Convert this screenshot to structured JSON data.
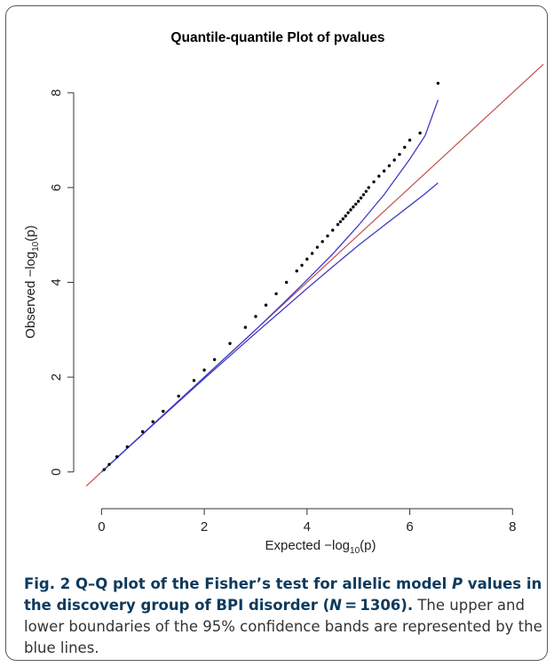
{
  "chart_data": {
    "type": "scatter",
    "title": "Quantile-quantile Plot of pvalues",
    "xlabel": "Expected  −log",
    "xlabel_sub": "10",
    "xlabel_tail": "(p)",
    "ylabel": "Observed  −log",
    "ylabel_sub": "10",
    "ylabel_tail": "(p)",
    "xlim": [
      -0.3,
      8.6
    ],
    "ylim": [
      -0.4,
      8.7
    ],
    "xticks": [
      0,
      2,
      4,
      6,
      8
    ],
    "yticks": [
      0,
      2,
      4,
      6,
      8
    ],
    "grid": false,
    "colors": {
      "points": "#000000",
      "reference": "#c0504d",
      "confidence_band": "#3c3cc8"
    },
    "reference_line": {
      "x": [
        -0.3,
        8.6
      ],
      "y": [
        -0.3,
        8.6
      ]
    },
    "series": [
      {
        "kind": "points",
        "x": [
          0.05,
          0.15,
          0.3,
          0.5,
          0.8,
          1.0,
          1.2,
          1.5,
          1.8,
          2.0,
          2.2,
          2.5,
          2.8,
          3.0,
          3.2,
          3.4,
          3.6,
          3.8,
          3.9,
          4.0,
          4.1,
          4.2,
          4.3,
          4.4,
          4.5,
          4.6,
          4.65,
          4.7,
          4.75,
          4.8,
          4.85,
          4.9,
          4.95,
          5.0,
          5.05,
          5.1,
          5.15,
          5.2,
          5.3,
          5.4,
          5.5,
          5.6,
          5.7,
          5.8,
          5.9,
          6.0,
          6.2,
          6.55
        ],
        "y": [
          0.05,
          0.16,
          0.32,
          0.53,
          0.85,
          1.06,
          1.28,
          1.6,
          1.93,
          2.15,
          2.37,
          2.71,
          3.05,
          3.28,
          3.52,
          3.76,
          4.0,
          4.24,
          4.36,
          4.49,
          4.61,
          4.74,
          4.86,
          4.98,
          5.1,
          5.22,
          5.28,
          5.34,
          5.4,
          5.47,
          5.53,
          5.59,
          5.65,
          5.71,
          5.78,
          5.85,
          5.92,
          6.0,
          6.12,
          6.24,
          6.35,
          6.46,
          6.58,
          6.7,
          6.85,
          7.0,
          7.15,
          8.2
        ]
      },
      {
        "kind": "band-upper",
        "x": [
          0,
          1,
          2,
          3,
          3.5,
          4,
          4.5,
          5,
          5.5,
          6,
          6.3,
          6.55
        ],
        "y": [
          0,
          1.0,
          2.0,
          3.0,
          3.52,
          4.05,
          4.6,
          5.2,
          5.85,
          6.6,
          7.1,
          7.85
        ]
      },
      {
        "kind": "band-lower",
        "x": [
          0,
          1,
          2,
          3,
          3.5,
          4,
          4.5,
          5,
          5.5,
          6,
          6.3,
          6.55
        ],
        "y": [
          0,
          0.99,
          1.97,
          2.93,
          3.4,
          3.87,
          4.33,
          4.78,
          5.2,
          5.62,
          5.87,
          6.1
        ]
      }
    ]
  },
  "caption": {
    "lead": "Fig. 2 Q–Q plot of the Fisher’s test for allelic model ",
    "lead_italic": "P",
    "lead_mid": " values in the discovery group of BPI disorder (",
    "lead_italic2": "N",
    "lead_end": " = 1306).",
    "rest": " The upper and lower boundaries of the 95% confidence bands are represented by the blue lines."
  }
}
